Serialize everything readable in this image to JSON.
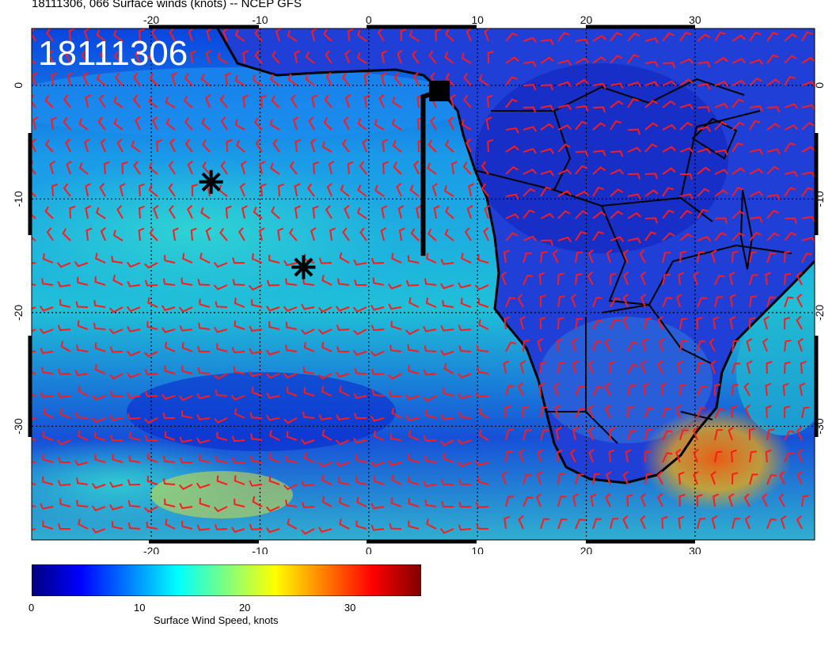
{
  "title": "18111306, 066 Surface winds (knots) -- NCEP GFS",
  "timestamp_label": "18111306",
  "map": {
    "lon_range": [
      -31,
      41
    ],
    "lat_range": [
      -40,
      5
    ],
    "lon_ticks": [
      "-20",
      "-10",
      "0",
      "10",
      "20",
      "30"
    ],
    "lat_ticks": [
      "0",
      "-10",
      "-20",
      "-30"
    ],
    "grid": true,
    "barb_color": "#ff1a1a",
    "coast_color": "#000000",
    "markers": [
      {
        "name": "star-marker-1",
        "lon": -14.5,
        "lat": -8.5
      },
      {
        "name": "star-marker-2",
        "lon": -6.0,
        "lat": -16.0
      }
    ],
    "flight_track": [
      [
        6.5,
        -0.5
      ],
      [
        5.0,
        -1.0
      ],
      [
        5.0,
        -15.0
      ]
    ]
  },
  "colorbar": {
    "title": "Surface Wind Speed, knots",
    "min": 0,
    "max": 37,
    "tick_labels": [
      "0",
      "10",
      "20",
      "30"
    ],
    "colors": [
      "#00007f",
      "#0000ff",
      "#007fff",
      "#00ffff",
      "#7fff7f",
      "#ffff00",
      "#ff7f00",
      "#ff0000",
      "#7f0000"
    ]
  }
}
